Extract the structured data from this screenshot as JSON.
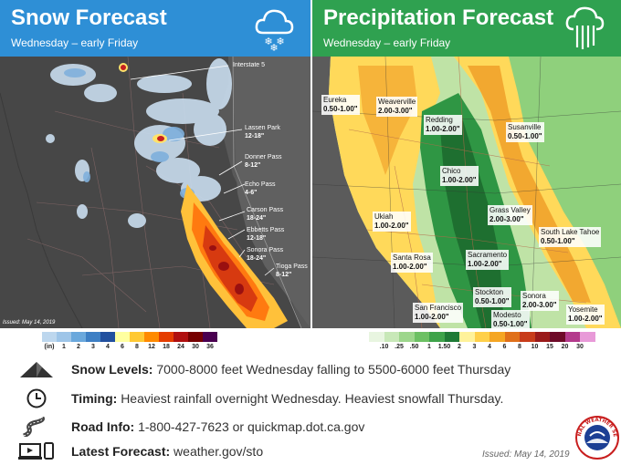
{
  "snow_panel": {
    "title": "Snow Forecast",
    "subtitle": "Wednesday – early Friday",
    "icon": "snow-cloud-icon",
    "issued": "Issued: May 14, 2019",
    "labels": [
      {
        "id": "interstate-5",
        "name": "Interstate 5",
        "amount": ""
      },
      {
        "id": "lassen-park",
        "name": "Lassen Park",
        "amount": "12-18\""
      },
      {
        "id": "donner-pass",
        "name": "Donner Pass",
        "amount": "8-12\""
      },
      {
        "id": "echo-pass",
        "name": "Echo Pass",
        "amount": "4-6\""
      },
      {
        "id": "carson-pass",
        "name": "Carson Pass",
        "amount": "18-24\""
      },
      {
        "id": "ebbetts-pass",
        "name": "Ebbetts Pass",
        "amount": "12-18\""
      },
      {
        "id": "sonora-pass",
        "name": "Sonora Pass",
        "amount": "18-24\""
      },
      {
        "id": "tioga-pass",
        "name": "Tioga Pass",
        "amount": "8-12\""
      }
    ],
    "legend": {
      "unit": "(in)",
      "ticks": [
        "1",
        "2",
        "3",
        "4",
        "6",
        "8",
        "12",
        "18",
        "24",
        "30",
        "36"
      ],
      "colors": [
        "#bdd7ee",
        "#9ec5e8",
        "#6aa8dc",
        "#3d7fc4",
        "#22509f",
        "#ffffa0",
        "#ffc934",
        "#ff8a00",
        "#e53d00",
        "#b01010",
        "#760000",
        "#4a0050"
      ]
    }
  },
  "precip_panel": {
    "title": "Precipitation Forecast",
    "subtitle": "Wednesday – early Friday",
    "icon": "rain-cloud-icon",
    "locations": [
      {
        "id": "eureka",
        "name": "Eureka",
        "value": "0.50-1.00\""
      },
      {
        "id": "weaverville",
        "name": "Weaverville",
        "value": "2.00-3.00\""
      },
      {
        "id": "redding",
        "name": "Redding",
        "value": "1.00-2.00\""
      },
      {
        "id": "susanville",
        "name": "Susanville",
        "value": "0.50-1.00\""
      },
      {
        "id": "chico",
        "name": "Chico",
        "value": "1.00-2.00\""
      },
      {
        "id": "ukiah",
        "name": "Ukiah",
        "value": "1.00-2.00\""
      },
      {
        "id": "grass-valley",
        "name": "Grass Valley",
        "value": "2.00-3.00\""
      },
      {
        "id": "south-lake-tahoe",
        "name": "South Lake Tahoe",
        "value": "0.50-1.00\""
      },
      {
        "id": "santa-rosa",
        "name": "Santa Rosa",
        "value": "1.00-2.00\""
      },
      {
        "id": "sacramento",
        "name": "Sacramento",
        "value": "1.00-2.00\""
      },
      {
        "id": "stockton",
        "name": "Stockton",
        "value": "0.50-1.00\""
      },
      {
        "id": "sonora",
        "name": "Sonora",
        "value": "2.00-3.00\""
      },
      {
        "id": "san-francisco",
        "name": "San Francisco",
        "value": "1.00-2.00\""
      },
      {
        "id": "modesto",
        "name": "Modesto",
        "value": "0.50-1.00\""
      },
      {
        "id": "yosemite",
        "name": "Yosemite",
        "value": "1.00-2.00\""
      }
    ],
    "legend": {
      "ticks": [
        ".10",
        ".25",
        ".50",
        "1",
        "1.50",
        "2",
        "3",
        "4",
        "6",
        "8",
        "10",
        "15",
        "20",
        "30"
      ],
      "colors": [
        "#e8f5e0",
        "#c8e8b8",
        "#9dd68c",
        "#6cc063",
        "#3ea34a",
        "#1f7a36",
        "#fff29a",
        "#ffd04a",
        "#f5a623",
        "#e0701a",
        "#c83c1a",
        "#9a1a1a",
        "#6e0a28",
        "#b43a8c",
        "#e89ad8"
      ]
    }
  },
  "info": {
    "snow_levels": {
      "label": "Snow Levels:",
      "text": "7000-8000  feet Wednesday falling to 5500-6000 feet Thursday",
      "icon": "mountain-icon"
    },
    "timing": {
      "label": "Timing:",
      "text": "Heaviest rainfall overnight Wednesday. Heaviest snowfall Thursday.",
      "icon": "clock-icon"
    },
    "road_info": {
      "label": "Road Info:",
      "text": "1-800-427-7623  or quickmap.dot.ca.gov",
      "icon": "road-icon"
    },
    "latest_forecast": {
      "label": "Latest Forecast:",
      "text": "weather.gov/sto",
      "icon": "devices-icon"
    }
  },
  "issued_bottom": "Issued: May 14, 2019",
  "logo": {
    "name": "nws-logo",
    "text": "NATIONAL WEATHER SERVICE"
  }
}
